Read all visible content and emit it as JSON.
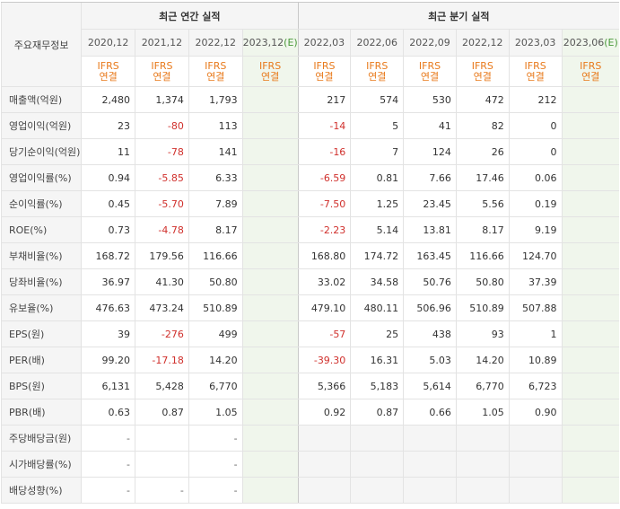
{
  "header": {
    "row_label": "주요재무정보",
    "annual_title": "최근 연간 실적",
    "quarter_title": "최근 분기 실적",
    "annual_periods": [
      "2020,12",
      "2021,12",
      "2022,12",
      "2023,12"
    ],
    "annual_est_mark": "(E)",
    "quarter_periods": [
      "2022,03",
      "2022,06",
      "2022,09",
      "2022,12",
      "2023,03",
      "2023,06"
    ],
    "quarter_est_mark": "(E)",
    "ifrs_top": "IFRS",
    "ifrs_bottom": "연결"
  },
  "rows": [
    {
      "label": "매출액(억원)",
      "annual": [
        "2,480",
        "1,374",
        "1,793",
        ""
      ],
      "quarter": [
        "217",
        "574",
        "530",
        "472",
        "212",
        ""
      ]
    },
    {
      "label": "영업이익(억원)",
      "annual": [
        "23",
        "-80",
        "113",
        ""
      ],
      "quarter": [
        "-14",
        "5",
        "41",
        "82",
        "0",
        ""
      ]
    },
    {
      "label": "당기순이익(억원)",
      "annual": [
        "11",
        "-78",
        "141",
        ""
      ],
      "quarter": [
        "-16",
        "7",
        "124",
        "26",
        "0",
        ""
      ]
    },
    {
      "label": "영업이익률(%)",
      "annual": [
        "0.94",
        "-5.85",
        "6.33",
        ""
      ],
      "quarter": [
        "-6.59",
        "0.81",
        "7.66",
        "17.46",
        "0.06",
        ""
      ]
    },
    {
      "label": "순이익률(%)",
      "annual": [
        "0.45",
        "-5.70",
        "7.89",
        ""
      ],
      "quarter": [
        "-7.50",
        "1.25",
        "23.45",
        "5.56",
        "0.19",
        ""
      ]
    },
    {
      "label": "ROE(%)",
      "annual": [
        "0.73",
        "-4.78",
        "8.17",
        ""
      ],
      "quarter": [
        "-2.23",
        "5.14",
        "13.81",
        "8.17",
        "9.19",
        ""
      ]
    },
    {
      "label": "부채비율(%)",
      "annual": [
        "168.72",
        "179.56",
        "116.66",
        ""
      ],
      "quarter": [
        "168.80",
        "174.72",
        "163.45",
        "116.66",
        "124.70",
        ""
      ]
    },
    {
      "label": "당좌비율(%)",
      "annual": [
        "36.97",
        "41.30",
        "50.80",
        ""
      ],
      "quarter": [
        "33.02",
        "34.58",
        "50.76",
        "50.80",
        "37.39",
        ""
      ]
    },
    {
      "label": "유보율(%)",
      "annual": [
        "476.63",
        "473.24",
        "510.89",
        ""
      ],
      "quarter": [
        "479.10",
        "480.11",
        "506.96",
        "510.89",
        "507.88",
        ""
      ]
    },
    {
      "label": "EPS(원)",
      "annual": [
        "39",
        "-276",
        "499",
        ""
      ],
      "quarter": [
        "-57",
        "25",
        "438",
        "93",
        "1",
        ""
      ]
    },
    {
      "label": "PER(배)",
      "annual": [
        "99.20",
        "-17.18",
        "14.20",
        ""
      ],
      "quarter": [
        "-39.30",
        "16.31",
        "5.03",
        "14.20",
        "10.89",
        ""
      ]
    },
    {
      "label": "BPS(원)",
      "annual": [
        "6,131",
        "5,428",
        "6,770",
        ""
      ],
      "quarter": [
        "5,366",
        "5,183",
        "5,614",
        "6,770",
        "6,723",
        ""
      ]
    },
    {
      "label": "PBR(배)",
      "annual": [
        "0.63",
        "0.87",
        "1.05",
        ""
      ],
      "quarter": [
        "0.92",
        "0.87",
        "0.66",
        "1.05",
        "0.90",
        ""
      ]
    },
    {
      "label": "주당배당금(원)",
      "annual": [
        "-",
        "",
        "-",
        ""
      ],
      "quarter": [
        "",
        "",
        "",
        "",
        "",
        ""
      ]
    },
    {
      "label": "시가배당률(%)",
      "annual": [
        "-",
        "",
        "-",
        ""
      ],
      "quarter": [
        "",
        "",
        "",
        "",
        "",
        ""
      ]
    },
    {
      "label": "배당성향(%)",
      "annual": [
        "-",
        "-",
        "-",
        ""
      ],
      "quarter": [
        "",
        "",
        "",
        "",
        "",
        ""
      ]
    }
  ],
  "colors": {
    "negative": "#d0302c",
    "ifrs": "#e87a1c",
    "estimate_bg": "#f0f6ec",
    "estimate_mark": "#4a9a3a"
  }
}
